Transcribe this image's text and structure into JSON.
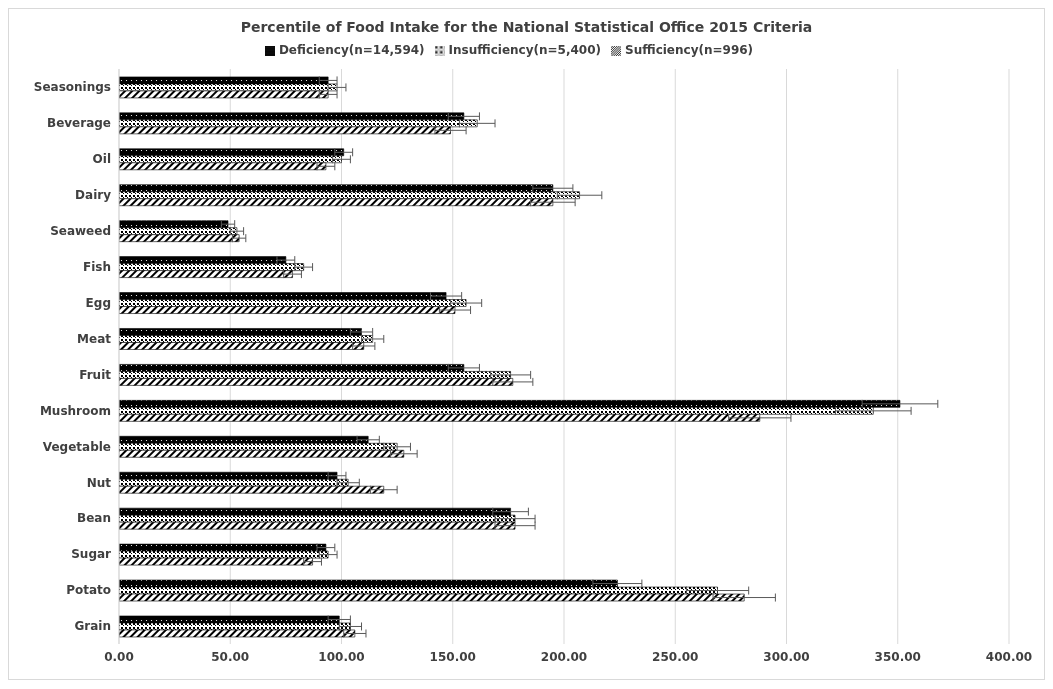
{
  "chart_data": {
    "type": "bar",
    "orientation": "horizontal",
    "title": "Percentile of Food Intake for the National Statistical Office 2015 Criteria",
    "categories": [
      "Seasonings",
      "Beverage",
      "Oil",
      "Dairy",
      "Seaweed",
      "Fish",
      "Egg",
      "Meat",
      "Fruit",
      "Mushroom",
      "Vegetable",
      "Nut",
      "Bean",
      "Sugar",
      "Potato",
      "Grain"
    ],
    "series": [
      {
        "name": "Deficiency(n=14,594)",
        "color": "#000000",
        "values": [
          94,
          155,
          101,
          195,
          49,
          75,
          147,
          109,
          155,
          351,
          112,
          98,
          176,
          93,
          224,
          99
        ],
        "errors": [
          4,
          7,
          4,
          9,
          3,
          4,
          7,
          5,
          7,
          17,
          5,
          4,
          8,
          4,
          11,
          5
        ]
      },
      {
        "name": "Insufficiency(n=5,400)",
        "color": "#000000",
        "values": [
          98,
          161,
          100,
          207,
          53,
          83,
          156,
          114,
          176,
          339,
          125,
          103,
          178,
          94,
          269,
          104
        ],
        "errors": [
          4,
          8,
          4,
          10,
          3,
          4,
          7,
          5,
          9,
          17,
          6,
          5,
          9,
          4,
          14,
          5
        ]
      },
      {
        "name": "Sufficiency(n=996)",
        "color": "#000000",
        "values": [
          94,
          149,
          93,
          195,
          54,
          78,
          151,
          110,
          177,
          288,
          128,
          119,
          178,
          87,
          281,
          106
        ],
        "errors": [
          4,
          7,
          4,
          10,
          3,
          4,
          7,
          5,
          9,
          14,
          6,
          6,
          9,
          4,
          14,
          5
        ]
      }
    ],
    "xlim": [
      0,
      400
    ],
    "xticks": [
      {
        "value": 0,
        "label": "0.00"
      },
      {
        "value": 50,
        "label": "50.00"
      },
      {
        "value": 100,
        "label": "100.00"
      },
      {
        "value": 150,
        "label": "150.00"
      },
      {
        "value": 200,
        "label": "200.00"
      },
      {
        "value": 250,
        "label": "250.00"
      },
      {
        "value": 300,
        "label": "300.00"
      },
      {
        "value": 350,
        "label": "350.00"
      },
      {
        "value": 400,
        "label": "400.00"
      }
    ],
    "grid": "x",
    "legend": "top"
  }
}
